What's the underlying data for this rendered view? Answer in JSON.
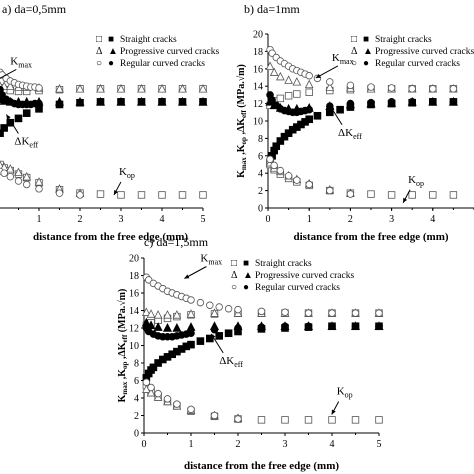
{
  "chart_data": [
    {
      "type": "scatter",
      "title": "a) da=0,5mm",
      "xlabel": "distance from the free edge (mm)",
      "ylabel": "",
      "xlim": [
        0,
        5
      ],
      "ylim": [
        0,
        20
      ],
      "xticks": [
        "1",
        "2",
        "3",
        "4",
        "5"
      ],
      "yticks": [],
      "grid": false,
      "legend": {
        "position": "top-right",
        "entries": [
          {
            "symbols": "□ ■",
            "label": "Straight cracks"
          },
          {
            "symbols": "Δ ▲",
            "label": "Progressive curved cracks"
          },
          {
            "symbols": "○ ●",
            "label": "Regular curved cracks"
          }
        ]
      },
      "annotations": [
        {
          "text": "K",
          "sub": "max",
          "x": 0.3,
          "y": 16.5
        },
        {
          "text": "ΔK",
          "sub": "eff",
          "x": 0.4,
          "y": 7.3
        },
        {
          "text": "K",
          "sub": "op",
          "x": 2.95,
          "y": 3.8
        }
      ],
      "series": [
        {
          "marker": "square-open",
          "x": [
            0.05,
            0.15,
            0.3,
            0.5,
            0.7,
            1.0,
            1.5,
            2.0,
            2.5,
            3.0,
            3.5,
            4.0,
            4.5,
            5.0
          ],
          "y": [
            13.8,
            13.6,
            13.5,
            13.4,
            13.4,
            13.5,
            13.6,
            13.7,
            13.7,
            13.7,
            13.7,
            13.7,
            13.7,
            13.7
          ]
        },
        {
          "marker": "square-filled",
          "x": [
            0.05,
            0.15,
            0.3,
            0.5,
            0.7,
            1.0,
            1.5,
            2.0,
            2.5,
            3.0,
            3.5,
            4.0,
            4.5,
            5.0
          ],
          "y": [
            8.6,
            9.2,
            9.8,
            10.3,
            10.9,
            11.4,
            11.9,
            12.1,
            12.2,
            12.2,
            12.2,
            12.2,
            12.2,
            12.2
          ]
        },
        {
          "marker": "triangle-open",
          "x": [
            0.05,
            0.15,
            0.3,
            0.5,
            0.7,
            1.0,
            1.5,
            2.0,
            2.5,
            3.0,
            3.5,
            4.0,
            4.5,
            5.0
          ],
          "y": [
            14.0,
            14.0,
            14.0,
            13.9,
            13.9,
            13.8,
            13.7,
            13.7,
            13.7,
            13.7,
            13.7,
            13.7,
            13.7,
            13.7
          ]
        },
        {
          "marker": "triangle-filled",
          "x": [
            0.05,
            0.15,
            0.3,
            0.5,
            0.7,
            1.0,
            1.5,
            2.0,
            2.5,
            3.0,
            3.5,
            4.0,
            4.5,
            5.0
          ],
          "y": [
            12.5,
            12.3,
            12.2,
            12.2,
            12.2,
            12.2,
            12.2,
            12.2,
            12.2,
            12.2,
            12.2,
            12.2,
            12.2,
            12.2
          ]
        },
        {
          "marker": "circle-open",
          "x": [
            0.05,
            0.1,
            0.2,
            0.3,
            0.4,
            0.5,
            0.6,
            0.7,
            0.8,
            0.9,
            1.0
          ],
          "y": [
            15.6,
            15.3,
            14.9,
            14.6,
            14.4,
            14.2,
            14.1,
            14.0,
            13.9,
            13.9,
            13.8
          ]
        },
        {
          "marker": "circle-filled",
          "x": [
            0.05,
            0.1,
            0.2,
            0.3,
            0.4,
            0.5,
            0.6,
            0.7,
            0.8,
            0.9,
            1.0
          ],
          "y": [
            13.6,
            13.0,
            12.5,
            12.2,
            12.0,
            11.9,
            11.9,
            11.9,
            11.9,
            12.0,
            12.0
          ]
        },
        {
          "marker": "square-open",
          "x": [
            0.05,
            0.15,
            0.3,
            0.5,
            0.7,
            1.0,
            1.5,
            2.0,
            2.5,
            3.0,
            3.5,
            4.0,
            4.5,
            5.0
          ],
          "y": [
            5.0,
            4.6,
            4.3,
            3.9,
            3.5,
            2.9,
            2.1,
            1.7,
            1.6,
            1.5,
            1.5,
            1.5,
            1.5,
            1.5
          ]
        },
        {
          "marker": "triangle-open",
          "x": [
            0.05,
            0.15,
            0.3,
            0.5,
            0.7,
            1.0,
            1.5,
            2.0
          ],
          "y": [
            4.9,
            4.7,
            4.5,
            4.1,
            3.6,
            3.0,
            2.2,
            1.7
          ]
        },
        {
          "marker": "circle-open",
          "x": [
            0.05,
            0.15,
            0.3,
            0.5,
            0.7,
            1.0,
            1.5,
            2.0
          ],
          "y": [
            4.2,
            4.0,
            3.6,
            3.1,
            2.7,
            2.2,
            1.7,
            1.5
          ]
        }
      ]
    },
    {
      "type": "scatter",
      "title": "b) da=1mm",
      "xlabel": "distance from the free edge (mm)",
      "ylabel": "K max , K op , ΔK eff (MPa.√m)",
      "xlim": [
        0,
        5
      ],
      "ylim": [
        0,
        20
      ],
      "xticks": [
        "0",
        "1",
        "2",
        "3",
        "4"
      ],
      "yticks": [
        "0",
        "2",
        "4",
        "6",
        "8",
        "10",
        "12",
        "14",
        "16",
        "18",
        "20"
      ],
      "grid": false,
      "legend": {
        "position": "top-right",
        "entries": [
          {
            "symbols": "□ ■",
            "label": "Straight cracks"
          },
          {
            "symbols": "Δ ▲",
            "label": "Progressive curved cracks"
          },
          {
            "symbols": "○ ●",
            "label": "Regular curved cracks"
          }
        ]
      },
      "annotations": [
        {
          "text": "K",
          "sub": "max",
          "x": 1.55,
          "y": 16.9
        },
        {
          "text": "ΔK",
          "sub": "eff",
          "x": 1.7,
          "y": 8.3
        },
        {
          "text": "K",
          "sub": "op",
          "x": 3.4,
          "y": 2.9
        }
      ],
      "series": [
        {
          "marker": "square-open",
          "x": [
            0.05,
            0.15,
            0.3,
            0.5,
            0.7,
            1.0,
            1.5,
            2.0,
            2.5,
            3.0,
            3.5,
            4.0,
            4.5
          ],
          "y": [
            11.8,
            12.3,
            12.6,
            12.9,
            13.1,
            13.3,
            13.5,
            13.6,
            13.7,
            13.7,
            13.7,
            13.7,
            13.7
          ]
        },
        {
          "marker": "square-filled",
          "x": [
            0.05,
            0.1,
            0.15,
            0.2,
            0.3,
            0.4,
            0.5,
            0.6,
            0.7,
            0.8,
            0.9,
            1.0,
            1.2,
            1.5,
            1.75,
            2.0,
            2.5,
            3.0,
            3.5,
            4.0,
            4.5
          ],
          "y": [
            5.2,
            6.0,
            6.6,
            7.1,
            7.7,
            8.2,
            8.6,
            9.0,
            9.3,
            9.6,
            9.9,
            10.2,
            10.6,
            11.0,
            11.3,
            11.6,
            11.9,
            12.0,
            12.1,
            12.2,
            12.2
          ]
        },
        {
          "marker": "triangle-open",
          "x": [
            0.05,
            0.15,
            0.3,
            0.5,
            0.7,
            1.0,
            1.5,
            2.0,
            2.5,
            3.0,
            3.5,
            4.0,
            4.5
          ],
          "y": [
            16.3,
            15.6,
            15.1,
            14.7,
            14.5,
            14.2,
            13.9,
            13.8,
            13.7,
            13.7,
            13.7,
            13.7,
            13.7
          ]
        },
        {
          "marker": "triangle-filled",
          "x": [
            0.05,
            0.15,
            0.3,
            0.5,
            0.7,
            1.0,
            1.5,
            2.0,
            2.5,
            3.0,
            3.5,
            4.0,
            4.5
          ],
          "y": [
            12.2,
            11.8,
            11.5,
            11.4,
            11.4,
            11.5,
            11.7,
            11.9,
            12.0,
            12.1,
            12.2,
            12.2,
            12.2
          ]
        },
        {
          "marker": "circle-open",
          "x": [
            0.05,
            0.1,
            0.2,
            0.3,
            0.4,
            0.5,
            0.6,
            0.7,
            0.8,
            0.9,
            1.0,
            1.2,
            1.5,
            2.0,
            2.5,
            3.0,
            3.5,
            4.0,
            4.5
          ],
          "y": [
            18.2,
            17.8,
            17.3,
            16.9,
            16.6,
            16.3,
            16.0,
            15.8,
            15.6,
            15.4,
            15.2,
            14.9,
            14.5,
            14.1,
            13.9,
            13.8,
            13.7,
            13.7,
            13.7
          ]
        },
        {
          "marker": "circle-filled",
          "x": [
            0.05,
            0.1,
            0.2,
            0.3,
            0.4,
            0.5,
            0.6,
            0.7,
            0.8,
            0.9,
            1.0,
            1.5,
            2.0,
            2.5,
            3.0,
            3.5,
            4.0,
            4.5
          ],
          "y": [
            13.0,
            12.4,
            11.8,
            11.4,
            11.2,
            11.1,
            11.0,
            11.0,
            11.1,
            11.2,
            11.3,
            11.7,
            12.0,
            12.1,
            12.2,
            12.2,
            12.2,
            12.2
          ]
        },
        {
          "marker": "square-open",
          "x": [
            0.05,
            0.15,
            0.3,
            0.5,
            0.7,
            1.0,
            1.5,
            2.0,
            2.5,
            3.0,
            3.5,
            4.0,
            4.5
          ],
          "y": [
            5.0,
            4.4,
            3.9,
            3.4,
            3.0,
            2.6,
            2.0,
            1.7,
            1.6,
            1.5,
            1.5,
            1.5,
            1.5
          ]
        },
        {
          "marker": "triangle-open",
          "x": [
            0.05,
            0.15,
            0.3,
            0.5,
            0.7,
            1.0,
            1.5,
            2.0
          ],
          "y": [
            5.2,
            4.6,
            4.2,
            3.7,
            3.3,
            2.8,
            2.1,
            1.7
          ]
        },
        {
          "marker": "circle-open",
          "x": [
            0.05,
            0.15,
            0.3,
            0.5,
            0.7,
            1.0,
            1.5,
            2.0
          ],
          "y": [
            5.6,
            4.9,
            4.3,
            3.7,
            3.2,
            2.7,
            2.0,
            1.6
          ]
        }
      ]
    },
    {
      "type": "scatter",
      "title": "c) da=1,5mm",
      "xlabel": "distance from the free edge (mm)",
      "ylabel": "K max , K op , ΔK eff (MPa.√m)",
      "xlim": [
        0,
        5
      ],
      "ylim": [
        0,
        20
      ],
      "xticks": [
        "0",
        "1",
        "2",
        "3",
        "4",
        "5"
      ],
      "yticks": [
        "0",
        "2",
        "4",
        "6",
        "8",
        "10",
        "12",
        "14",
        "16",
        "18",
        "20"
      ],
      "grid": false,
      "legend": {
        "position": "top-right",
        "entries": [
          {
            "symbols": "□ ■",
            "label": "Straight cracks"
          },
          {
            "symbols": "Δ ▲",
            "label": "Progressive curved cracks"
          },
          {
            "symbols": "○ ●",
            "label": "Regular curved cracks"
          }
        ]
      },
      "annotations": [
        {
          "text": "K",
          "sub": "max",
          "x": 1.2,
          "y": 19.6
        },
        {
          "text": "ΔK",
          "sub": "eff",
          "x": 1.6,
          "y": 7.9
        },
        {
          "text": "K",
          "sub": "op",
          "x": 4.1,
          "y": 4.4
        }
      ],
      "series": [
        {
          "marker": "square-open",
          "x": [
            0.05,
            0.15,
            0.3,
            0.5,
            0.7,
            1.0,
            1.5,
            2.0,
            2.5,
            3.0,
            3.5,
            4.0,
            4.5,
            5.0
          ],
          "y": [
            12.3,
            12.6,
            12.9,
            13.1,
            13.3,
            13.5,
            13.6,
            13.7,
            13.7,
            13.7,
            13.7,
            13.7,
            13.7,
            13.7
          ]
        },
        {
          "marker": "square-filled",
          "x": [
            0.05,
            0.1,
            0.15,
            0.2,
            0.3,
            0.4,
            0.5,
            0.6,
            0.7,
            0.8,
            0.9,
            1.0,
            1.2,
            1.4,
            1.6,
            1.8,
            2.0,
            2.5,
            3.0,
            3.5,
            4.0,
            4.5,
            5.0
          ],
          "y": [
            6.3,
            6.8,
            7.2,
            7.5,
            8.0,
            8.4,
            8.7,
            9.0,
            9.3,
            9.6,
            9.9,
            10.1,
            10.5,
            10.8,
            11.1,
            11.4,
            11.6,
            11.9,
            12.0,
            12.1,
            12.2,
            12.2,
            12.2
          ]
        },
        {
          "marker": "triangle-open",
          "x": [
            0.05,
            0.15,
            0.3,
            0.5,
            0.7,
            1.0,
            1.5,
            2.0,
            2.5,
            3.0,
            3.5,
            4.0,
            4.5,
            5.0
          ],
          "y": [
            13.8,
            13.6,
            13.5,
            13.5,
            13.5,
            13.6,
            13.7,
            13.7,
            13.7,
            13.7,
            13.7,
            13.7,
            13.7,
            13.7
          ]
        },
        {
          "marker": "triangle-filled",
          "x": [
            0.05,
            0.15,
            0.3,
            0.5,
            0.7,
            1.0,
            1.5,
            2.0,
            2.5,
            3.0,
            3.5,
            4.0,
            4.5,
            5.0
          ],
          "y": [
            12.6,
            12.3,
            12.1,
            12.0,
            12.0,
            12.1,
            12.2,
            12.2,
            12.2,
            12.2,
            12.2,
            12.2,
            12.2,
            12.2
          ]
        },
        {
          "marker": "circle-open",
          "x": [
            0.05,
            0.1,
            0.2,
            0.3,
            0.4,
            0.5,
            0.6,
            0.7,
            0.8,
            0.9,
            1.0,
            1.2,
            1.4,
            1.6,
            1.8,
            2.0,
            2.5,
            3.0,
            3.5,
            4.0,
            4.5,
            5.0
          ],
          "y": [
            17.8,
            17.5,
            17.1,
            16.8,
            16.5,
            16.2,
            16.0,
            15.8,
            15.6,
            15.4,
            15.2,
            14.9,
            14.6,
            14.4,
            14.2,
            14.1,
            13.9,
            13.8,
            13.7,
            13.7,
            13.7,
            13.7
          ]
        },
        {
          "marker": "circle-filled",
          "x": [
            0.05,
            0.1,
            0.2,
            0.3,
            0.4,
            0.5,
            0.6,
            0.7,
            0.8,
            0.9,
            1.0,
            1.5,
            2.0,
            2.5,
            3.0,
            3.5,
            4.0,
            4.5,
            5.0
          ],
          "y": [
            12.0,
            11.6,
            11.3,
            11.1,
            11.0,
            11.0,
            11.0,
            11.1,
            11.2,
            11.3,
            11.4,
            11.8,
            12.0,
            12.1,
            12.2,
            12.2,
            12.2,
            12.2,
            12.2
          ]
        },
        {
          "marker": "square-open",
          "x": [
            0.05,
            0.15,
            0.3,
            0.5,
            0.7,
            1.0,
            1.5,
            2.0,
            2.5,
            3.0,
            3.5,
            4.0,
            4.5,
            5.0
          ],
          "y": [
            5.4,
            4.8,
            4.2,
            3.6,
            3.1,
            2.5,
            1.9,
            1.6,
            1.5,
            1.5,
            1.5,
            1.5,
            1.5,
            1.5
          ]
        },
        {
          "marker": "triangle-open",
          "x": [
            0.05,
            0.15,
            0.3,
            0.5,
            0.7,
            1.0,
            1.5,
            2.0
          ],
          "y": [
            5.0,
            4.6,
            4.1,
            3.6,
            3.1,
            2.6,
            2.0,
            1.7
          ]
        },
        {
          "marker": "circle-open",
          "x": [
            0.05,
            0.15,
            0.3,
            0.5,
            0.7,
            1.0,
            1.5,
            2.0
          ],
          "y": [
            5.8,
            5.2,
            4.5,
            3.9,
            3.3,
            2.7,
            2.0,
            1.6
          ]
        }
      ]
    }
  ]
}
